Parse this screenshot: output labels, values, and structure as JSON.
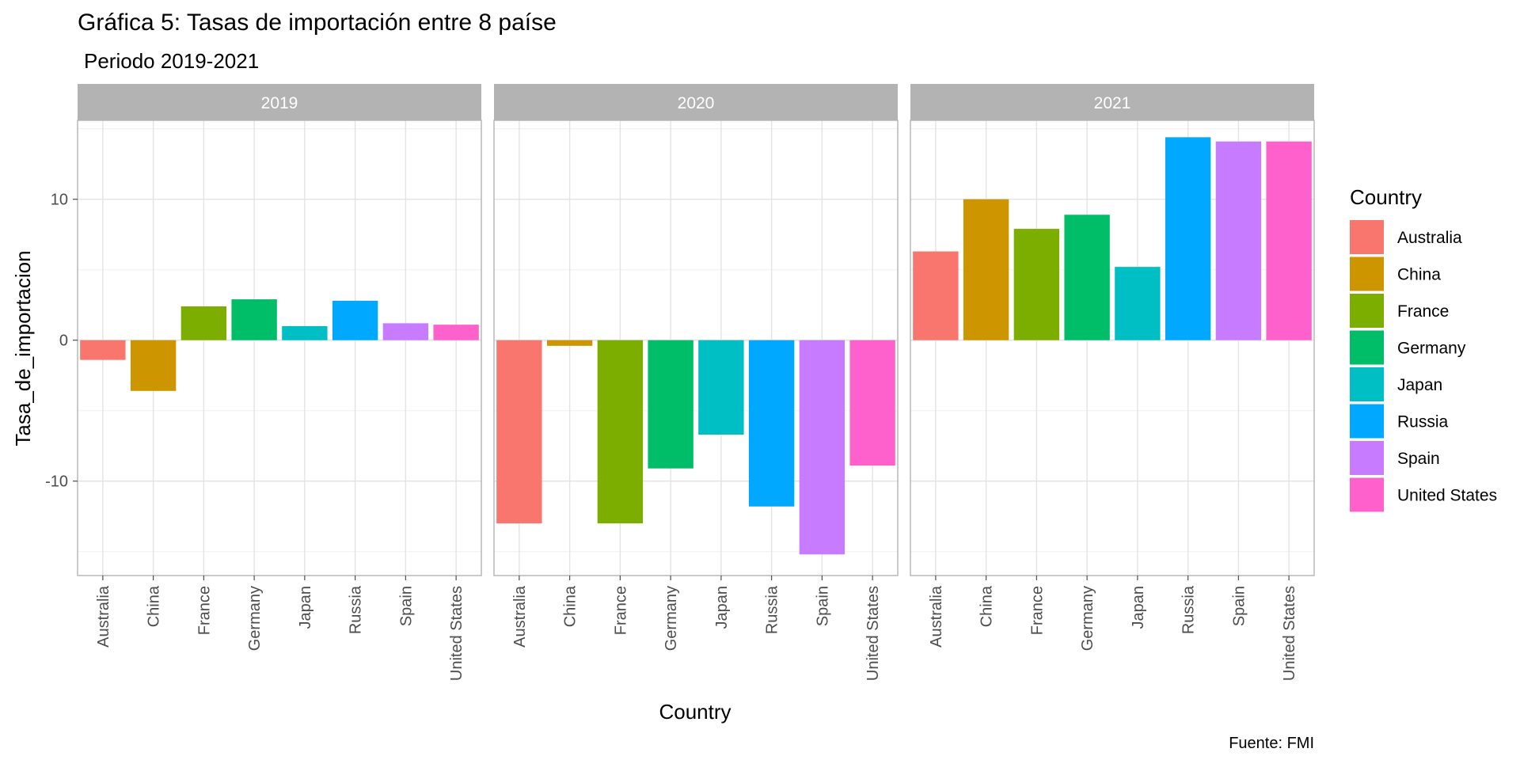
{
  "chart_data": {
    "type": "bar",
    "title": "Gráfica 5: Tasas de importación entre 8 paíse",
    "subtitle": "Periodo 2019-2021",
    "caption": "Fuente: FMI",
    "xlabel": "Country",
    "ylabel": "Tasa_de_importacion",
    "ylim": [
      -16.7,
      15.6
    ],
    "yticks": [
      10,
      0,
      -10
    ],
    "ytick_labels": [
      "10",
      "0",
      "-10"
    ],
    "grid": true,
    "categories": [
      "Australia",
      "China",
      "France",
      "Germany",
      "Japan",
      "Russia",
      "Spain",
      "United States"
    ],
    "colors": [
      "#F8766D",
      "#CD9600",
      "#7CAE00",
      "#00BE67",
      "#00BFC4",
      "#00A9FF",
      "#C77CFF",
      "#FF61CC"
    ],
    "facets": [
      {
        "label": "2019",
        "values": [
          -1.4,
          -3.6,
          2.4,
          2.9,
          1.0,
          2.8,
          1.2,
          1.1
        ]
      },
      {
        "label": "2020",
        "values": [
          -13.0,
          -0.4,
          -13.0,
          -9.1,
          -6.7,
          -11.8,
          -15.2,
          -8.9
        ]
      },
      {
        "label": "2021",
        "values": [
          6.3,
          10.0,
          7.9,
          8.9,
          5.2,
          14.4,
          14.1,
          14.1
        ]
      }
    ],
    "legend": {
      "title": "Country",
      "position": "right",
      "items": [
        "Australia",
        "China",
        "France",
        "Germany",
        "Japan",
        "Russia",
        "Spain",
        "United States"
      ]
    }
  }
}
